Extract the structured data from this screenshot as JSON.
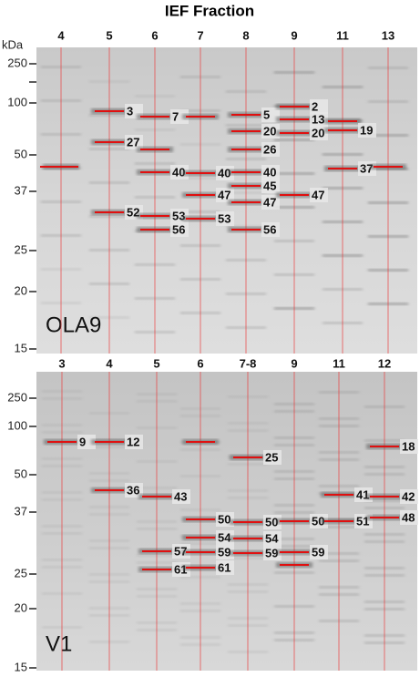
{
  "title": "IEF Fraction",
  "axis_unit": "kDa",
  "panels": [
    {
      "label": "OLA9",
      "ticks": [
        "250",
        "100",
        "50",
        "37",
        "25",
        "20",
        "15"
      ],
      "lanes": [
        {
          "label": "4"
        },
        {
          "label": "5",
          "bands": [
            "3",
            "27",
            "52"
          ]
        },
        {
          "label": "6",
          "bands": [
            "7",
            "40",
            "53",
            "56"
          ]
        },
        {
          "label": "7",
          "bands": [
            "40",
            "47",
            "53"
          ]
        },
        {
          "label": "8",
          "bands": [
            "5",
            "20",
            "26",
            "40",
            "45",
            "47",
            "56"
          ]
        },
        {
          "label": "9",
          "bands": [
            "2",
            "13",
            "20",
            "47"
          ]
        },
        {
          "label": "11",
          "bands": [
            "19",
            "37"
          ]
        },
        {
          "label": "13"
        }
      ]
    },
    {
      "label": "V1",
      "ticks": [
        "250",
        "100",
        "50",
        "37",
        "25",
        "20",
        "15"
      ],
      "lanes": [
        {
          "label": "3",
          "bands": [
            "9"
          ]
        },
        {
          "label": "4",
          "bands": [
            "12",
            "36"
          ]
        },
        {
          "label": "5",
          "bands": [
            "43",
            "57",
            "61"
          ]
        },
        {
          "label": "6",
          "bands": [
            "50",
            "54",
            "59",
            "61"
          ]
        },
        {
          "label": "7-8",
          "bands": [
            "25",
            "50",
            "54",
            "59"
          ]
        },
        {
          "label": "9",
          "bands": [
            "50",
            "59"
          ]
        },
        {
          "label": "11",
          "bands": [
            "41",
            "51"
          ]
        },
        {
          "label": "12",
          "bands": [
            "18",
            "42",
            "48"
          ]
        }
      ]
    }
  ]
}
